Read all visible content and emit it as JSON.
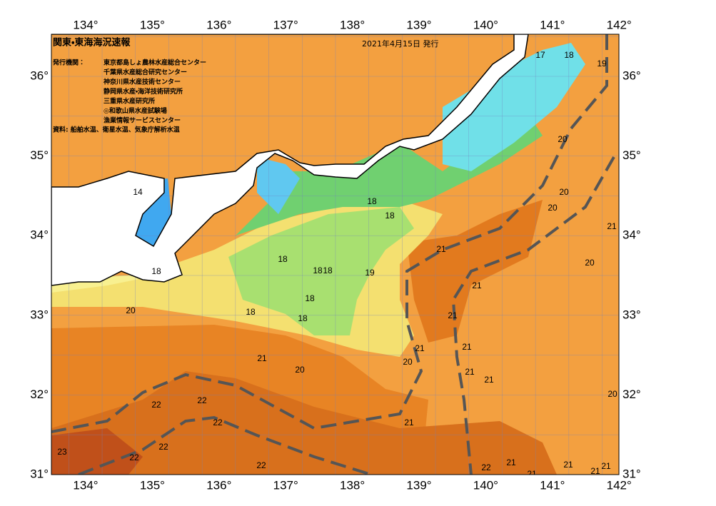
{
  "header": {
    "title": "関東・東海海況速報",
    "date": "2021年4月15日 発行"
  },
  "issuers": {
    "label": "発行機関：",
    "agencies": [
      "東京都島しょ農林水産総合センター",
      "千葉県水産総合研究センター",
      "神奈川県水産技術センター",
      "静岡県水産・海洋技術研究所",
      "三重県水産研究所",
      "◎和歌山県水産試験場",
      "漁業情報サービスセンター"
    ]
  },
  "source": "資料: 船舶水温、衛星水温、気象庁解析水温",
  "axes": {
    "lon_ticks": [
      {
        "value": 134,
        "label": "134°"
      },
      {
        "value": 135,
        "label": "135°"
      },
      {
        "value": 136,
        "label": "136°"
      },
      {
        "value": 137,
        "label": "137°"
      },
      {
        "value": 138,
        "label": "138°"
      },
      {
        "value": 139,
        "label": "139°"
      },
      {
        "value": 140,
        "label": "140°"
      },
      {
        "value": 141,
        "label": "141°"
      },
      {
        "value": 142,
        "label": "142°"
      }
    ],
    "lat_ticks": [
      {
        "value": 31,
        "label": "31°"
      },
      {
        "value": 32,
        "label": "32°"
      },
      {
        "value": 33,
        "label": "33°"
      },
      {
        "value": 34,
        "label": "34°"
      },
      {
        "value": 35,
        "label": "35°"
      },
      {
        "value": 36,
        "label": "36°"
      }
    ]
  },
  "isotherm_labels": [
    17,
    18,
    19,
    20,
    20,
    20,
    21,
    20,
    14,
    18,
    18,
    21,
    18,
    18,
    18,
    19,
    18,
    21,
    18,
    20,
    18,
    21,
    18,
    21,
    21,
    20,
    21,
    20,
    21,
    21,
    20,
    22,
    22,
    22,
    21,
    22,
    23,
    22,
    22,
    22,
    21,
    21,
    21,
    21,
    21
  ]
}
